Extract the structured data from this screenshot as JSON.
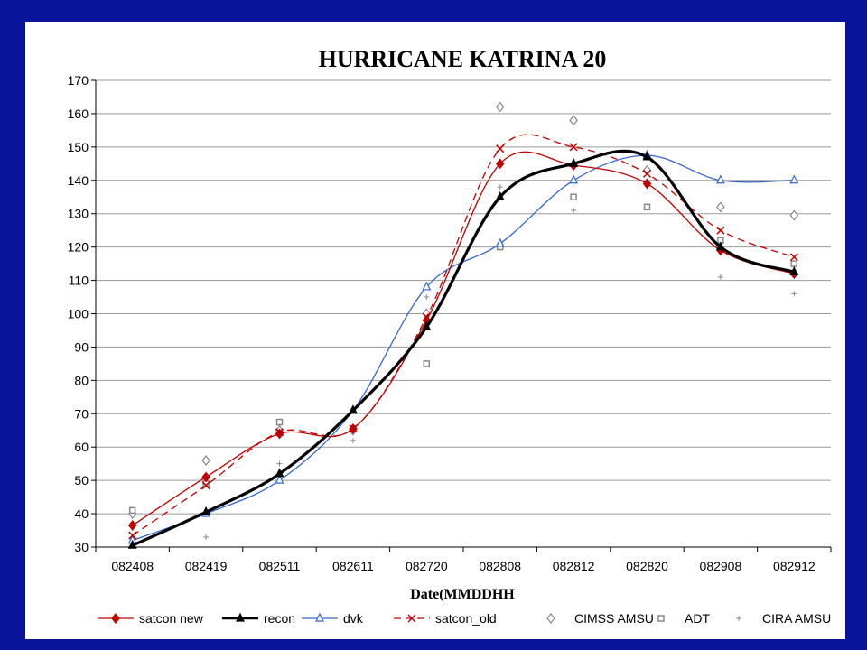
{
  "chart_data": {
    "type": "line",
    "title": "HURRICANE KATRINA 20",
    "xlabel": "Date(MMDDHH",
    "ylabel": "",
    "ylim": [
      30,
      170
    ],
    "yticks": [
      "30",
      "40",
      "50",
      "60",
      "70",
      "80",
      "90",
      "100",
      "110",
      "120",
      "130",
      "140",
      "150",
      "160",
      "170"
    ],
    "categories": [
      "082408",
      "082419",
      "082511",
      "082611",
      "082720",
      "082808",
      "082812",
      "082820",
      "082908",
      "082912"
    ],
    "grid": "horizontal",
    "legend_position": "bottom",
    "series": [
      {
        "name": "satcon new",
        "color": "#c00000",
        "marker": "diamond-filled",
        "line": "solid-smooth",
        "values": [
          36.5,
          51,
          64,
          65.5,
          98,
          145,
          144.5,
          139,
          119,
          112
        ]
      },
      {
        "name": "recon",
        "color": "#000000",
        "marker": "triangle-filled",
        "line": "bold-smooth",
        "values": [
          30.5,
          40.5,
          52,
          71,
          96,
          135,
          145,
          147,
          120,
          112.5
        ]
      },
      {
        "name": "dvk",
        "color": "#3366cc",
        "marker": "triangle-open",
        "line": "solid-smooth",
        "values": [
          32,
          40,
          50,
          71,
          108,
          121,
          140,
          147.5,
          140,
          140
        ]
      },
      {
        "name": "satcon_old",
        "color": "#c00000",
        "marker": "x",
        "line": "dashed-smooth",
        "values": [
          33.5,
          48.5,
          64.5,
          65.5,
          99,
          149.5,
          150,
          142,
          125,
          117
        ]
      },
      {
        "name": "CIMSS AMSU",
        "color": "#888888",
        "marker": "diamond-open",
        "line": "none",
        "values": [
          40,
          56,
          65,
          65,
          100,
          162,
          158,
          143,
          132,
          129.5
        ]
      },
      {
        "name": "ADT",
        "color": "#888888",
        "marker": "square-open",
        "line": "none",
        "values": [
          41,
          49,
          67.5,
          65.5,
          85,
          120,
          135,
          132,
          122,
          115
        ]
      },
      {
        "name": "CIRA AMSU",
        "color": "#888888",
        "marker": "plus",
        "line": "none",
        "values": [
          null,
          33,
          55,
          62,
          105,
          138,
          131,
          null,
          111,
          106
        ]
      }
    ]
  }
}
